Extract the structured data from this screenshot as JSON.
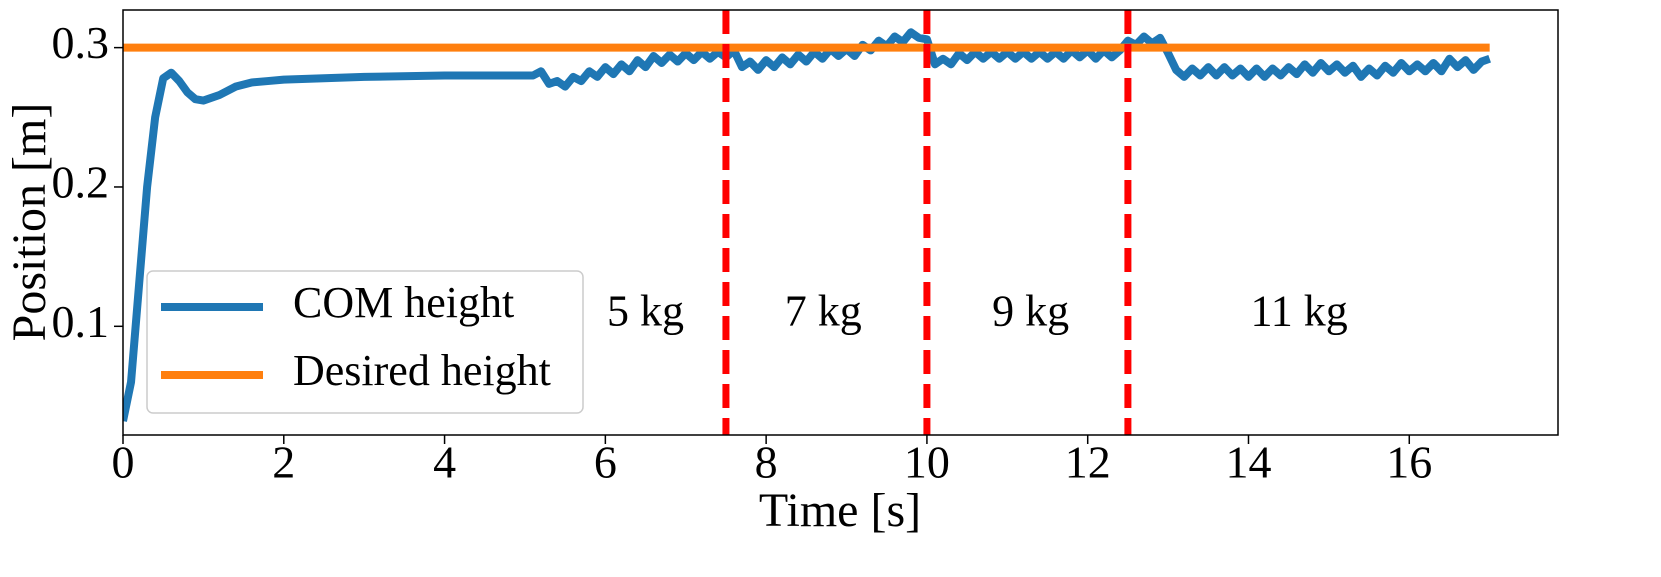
{
  "chart_data": {
    "type": "line",
    "xlabel": "Time [s]",
    "ylabel": "Position [m]",
    "xlim": [
      0,
      17.85
    ],
    "ylim": [
      0.022,
      0.327
    ],
    "xticks": [
      0,
      2,
      4,
      6,
      8,
      10,
      12,
      14,
      16
    ],
    "yticks": [
      0.1,
      0.2,
      0.3
    ],
    "legend": "lower left",
    "series": [
      {
        "name": "COM height",
        "color": "#1f77b4",
        "x": [
          0,
          0.1,
          0.2,
          0.3,
          0.4,
          0.5,
          0.6,
          0.7,
          0.8,
          0.9,
          1.0,
          1.2,
          1.4,
          1.6,
          1.8,
          2.0,
          2.5,
          3.0,
          4.0,
          5.0,
          5.1,
          5.2,
          5.3,
          5.4,
          5.5,
          5.6,
          5.7,
          5.8,
          5.9,
          6.0,
          6.1,
          6.2,
          6.3,
          6.4,
          6.5,
          6.6,
          6.7,
          6.8,
          6.9,
          7.0,
          7.1,
          7.2,
          7.3,
          7.4,
          7.5,
          7.6,
          7.7,
          7.8,
          7.9,
          8.0,
          8.1,
          8.2,
          8.3,
          8.4,
          8.5,
          8.6,
          8.7,
          8.8,
          8.9,
          9.0,
          9.1,
          9.2,
          9.3,
          9.4,
          9.5,
          9.6,
          9.7,
          9.8,
          9.9,
          10.0,
          10.1,
          10.2,
          10.3,
          10.4,
          10.5,
          10.6,
          10.7,
          10.8,
          10.9,
          11.0,
          11.1,
          11.2,
          11.3,
          11.4,
          11.5,
          11.6,
          11.7,
          11.8,
          11.9,
          12.0,
          12.1,
          12.2,
          12.3,
          12.4,
          12.5,
          12.6,
          12.7,
          12.8,
          12.9,
          13.0,
          13.1,
          13.2,
          13.3,
          13.4,
          13.5,
          13.6,
          13.7,
          13.8,
          13.9,
          14.0,
          14.1,
          14.2,
          14.3,
          14.4,
          14.5,
          14.6,
          14.7,
          14.8,
          14.9,
          15.0,
          15.1,
          15.2,
          15.3,
          15.4,
          15.5,
          15.6,
          15.7,
          15.8,
          15.9,
          16.0,
          16.1,
          16.2,
          16.3,
          16.4,
          16.5,
          16.6,
          16.7,
          16.8,
          16.9,
          17.0
        ],
        "values": [
          0.032,
          0.06,
          0.13,
          0.2,
          0.25,
          0.278,
          0.282,
          0.276,
          0.268,
          0.263,
          0.262,
          0.266,
          0.272,
          0.275,
          0.276,
          0.277,
          0.278,
          0.279,
          0.28,
          0.28,
          0.28,
          0.283,
          0.274,
          0.276,
          0.272,
          0.279,
          0.276,
          0.283,
          0.279,
          0.286,
          0.281,
          0.288,
          0.283,
          0.291,
          0.286,
          0.294,
          0.289,
          0.295,
          0.29,
          0.296,
          0.291,
          0.297,
          0.292,
          0.297,
          0.293,
          0.298,
          0.286,
          0.29,
          0.284,
          0.291,
          0.286,
          0.293,
          0.288,
          0.295,
          0.29,
          0.297,
          0.292,
          0.299,
          0.294,
          0.299,
          0.294,
          0.302,
          0.298,
          0.305,
          0.301,
          0.308,
          0.304,
          0.311,
          0.307,
          0.306,
          0.288,
          0.292,
          0.288,
          0.296,
          0.291,
          0.297,
          0.292,
          0.297,
          0.292,
          0.297,
          0.292,
          0.297,
          0.292,
          0.297,
          0.292,
          0.297,
          0.292,
          0.298,
          0.293,
          0.298,
          0.292,
          0.298,
          0.293,
          0.298,
          0.305,
          0.302,
          0.308,
          0.303,
          0.307,
          0.296,
          0.284,
          0.279,
          0.285,
          0.28,
          0.286,
          0.28,
          0.286,
          0.28,
          0.285,
          0.279,
          0.285,
          0.279,
          0.285,
          0.28,
          0.286,
          0.281,
          0.288,
          0.282,
          0.289,
          0.283,
          0.288,
          0.282,
          0.287,
          0.279,
          0.285,
          0.28,
          0.287,
          0.282,
          0.289,
          0.283,
          0.288,
          0.283,
          0.289,
          0.283,
          0.292,
          0.286,
          0.291,
          0.284,
          0.29,
          0.292
        ]
      },
      {
        "name": "Desired height",
        "color": "#ff7f0e",
        "x": [
          0,
          17
        ],
        "values": [
          0.3,
          0.3
        ]
      }
    ],
    "vlines": [
      7.5,
      10,
      12.5
    ],
    "vline_color": "#ff0000",
    "annotations": [
      {
        "text": "5 kg",
        "x": 6.5,
        "y": 0.108
      },
      {
        "text": "7 kg",
        "x": 8.71,
        "y": 0.108
      },
      {
        "text": "9 kg",
        "x": 11.29,
        "y": 0.108
      },
      {
        "text": "11 kg",
        "x": 14.63,
        "y": 0.108
      }
    ]
  }
}
